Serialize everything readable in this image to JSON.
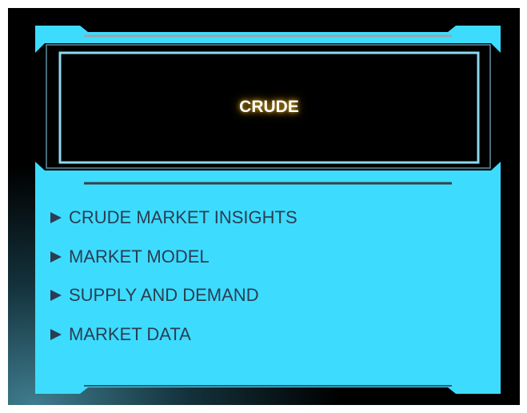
{
  "panel": {
    "title": "CRUDE",
    "menu": [
      "CRUDE MARKET INSIGHTS",
      "MARKET MODEL",
      "SUPPLY AND DEMAND",
      "MARKET DATA"
    ]
  }
}
